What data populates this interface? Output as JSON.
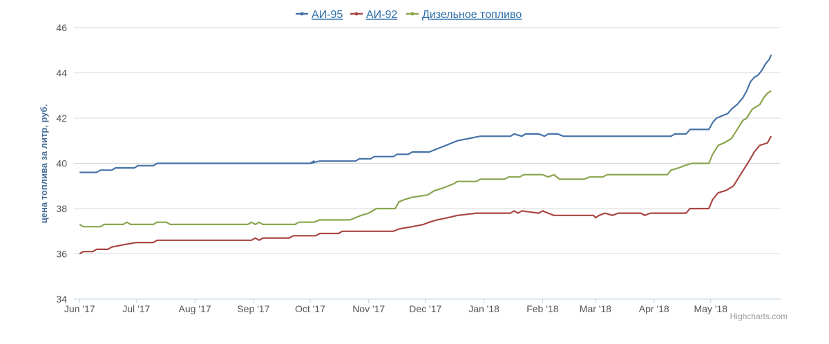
{
  "chart_data": {
    "type": "line",
    "ylabel": "цена топлива за литр, руб.",
    "ylim": [
      34,
      46
    ],
    "yticks": [
      34,
      36,
      38,
      40,
      42,
      44,
      46
    ],
    "xlim": [
      "2017-05-29",
      "2018-06-07"
    ],
    "xticks": [
      {
        "label": "Jun '17",
        "date": "2017-06-01"
      },
      {
        "label": "Jul '17",
        "date": "2017-07-01"
      },
      {
        "label": "Aug '17",
        "date": "2017-08-01"
      },
      {
        "label": "Sep '17",
        "date": "2017-09-01"
      },
      {
        "label": "Oct '17",
        "date": "2017-10-01"
      },
      {
        "label": "Nov '17",
        "date": "2017-11-01"
      },
      {
        "label": "Dec '17",
        "date": "2017-12-01"
      },
      {
        "label": "Jan '18",
        "date": "2018-01-01"
      },
      {
        "label": "Feb '18",
        "date": "2018-02-01"
      },
      {
        "label": "Mar '18",
        "date": "2018-03-01"
      },
      {
        "label": "Apr '18",
        "date": "2018-04-01"
      },
      {
        "label": "May '18",
        "date": "2018-05-01"
      }
    ],
    "grid": true,
    "legend": "top-center",
    "credit": "Highcharts.com",
    "series": [
      {
        "name": "АИ-95",
        "color": "#4572a7",
        "points": [
          [
            "2017-06-01",
            39.6
          ],
          [
            "2017-06-10",
            39.6
          ],
          [
            "2017-06-12",
            39.7
          ],
          [
            "2017-06-18",
            39.7
          ],
          [
            "2017-06-20",
            39.8
          ],
          [
            "2017-06-30",
            39.8
          ],
          [
            "2017-07-02",
            39.9
          ],
          [
            "2017-07-10",
            39.9
          ],
          [
            "2017-07-12",
            40.0
          ],
          [
            "2017-08-15",
            40.0
          ],
          [
            "2017-09-15",
            40.0
          ],
          [
            "2017-10-01",
            40.0
          ],
          [
            "2017-10-03",
            40.1
          ],
          [
            "2017-10-01",
            40.0
          ],
          [
            "2017-10-06",
            40.1
          ],
          [
            "2017-10-25",
            40.1
          ],
          [
            "2017-10-27",
            40.2
          ],
          [
            "2017-11-02",
            40.2
          ],
          [
            "2017-11-04",
            40.3
          ],
          [
            "2017-11-14",
            40.3
          ],
          [
            "2017-11-16",
            40.4
          ],
          [
            "2017-11-22",
            40.4
          ],
          [
            "2017-11-24",
            40.5
          ],
          [
            "2017-12-03",
            40.5
          ],
          [
            "2017-12-06",
            40.6
          ],
          [
            "2017-12-09",
            40.7
          ],
          [
            "2017-12-12",
            40.8
          ],
          [
            "2017-12-15",
            40.9
          ],
          [
            "2017-12-18",
            41.0
          ],
          [
            "2017-12-24",
            41.1
          ],
          [
            "2017-12-30",
            41.2
          ],
          [
            "2018-01-15",
            41.2
          ],
          [
            "2018-01-17",
            41.3
          ],
          [
            "2018-01-21",
            41.2
          ],
          [
            "2018-01-23",
            41.3
          ],
          [
            "2018-01-30",
            41.3
          ],
          [
            "2018-02-02",
            41.2
          ],
          [
            "2018-02-04",
            41.3
          ],
          [
            "2018-02-09",
            41.3
          ],
          [
            "2018-02-12",
            41.2
          ],
          [
            "2018-03-10",
            41.2
          ],
          [
            "2018-04-10",
            41.2
          ],
          [
            "2018-04-12",
            41.3
          ],
          [
            "2018-04-18",
            41.3
          ],
          [
            "2018-04-20",
            41.5
          ],
          [
            "2018-04-30",
            41.5
          ],
          [
            "2018-05-02",
            41.8
          ],
          [
            "2018-05-04",
            42.0
          ],
          [
            "2018-05-07",
            42.1
          ],
          [
            "2018-05-10",
            42.2
          ],
          [
            "2018-05-12",
            42.4
          ],
          [
            "2018-05-15",
            42.6
          ],
          [
            "2018-05-18",
            42.9
          ],
          [
            "2018-05-20",
            43.2
          ],
          [
            "2018-05-22",
            43.6
          ],
          [
            "2018-05-24",
            43.8
          ],
          [
            "2018-05-26",
            43.9
          ],
          [
            "2018-05-28",
            44.1
          ],
          [
            "2018-05-30",
            44.4
          ],
          [
            "2018-06-01",
            44.6
          ],
          [
            "2018-06-02",
            44.8
          ]
        ]
      },
      {
        "name": "АИ-92",
        "color": "#aa4643",
        "points": [
          [
            "2017-06-01",
            36.0
          ],
          [
            "2017-06-03",
            36.1
          ],
          [
            "2017-06-08",
            36.1
          ],
          [
            "2017-06-10",
            36.2
          ],
          [
            "2017-06-16",
            36.2
          ],
          [
            "2017-06-18",
            36.3
          ],
          [
            "2017-06-24",
            36.4
          ],
          [
            "2017-07-01",
            36.5
          ],
          [
            "2017-07-10",
            36.5
          ],
          [
            "2017-07-12",
            36.6
          ],
          [
            "2017-08-15",
            36.6
          ],
          [
            "2017-08-31",
            36.6
          ],
          [
            "2017-09-02",
            36.7
          ],
          [
            "2017-09-04",
            36.6
          ],
          [
            "2017-09-06",
            36.7
          ],
          [
            "2017-09-20",
            36.7
          ],
          [
            "2017-09-22",
            36.8
          ],
          [
            "2017-10-04",
            36.8
          ],
          [
            "2017-10-06",
            36.9
          ],
          [
            "2017-10-16",
            36.9
          ],
          [
            "2017-10-18",
            37.0
          ],
          [
            "2017-11-08",
            37.0
          ],
          [
            "2017-11-14",
            37.0
          ],
          [
            "2017-11-17",
            37.1
          ],
          [
            "2017-11-24",
            37.2
          ],
          [
            "2017-11-30",
            37.3
          ],
          [
            "2017-12-03",
            37.4
          ],
          [
            "2017-12-07",
            37.5
          ],
          [
            "2017-12-13",
            37.6
          ],
          [
            "2017-12-18",
            37.7
          ],
          [
            "2017-12-28",
            37.8
          ],
          [
            "2018-01-15",
            37.8
          ],
          [
            "2018-01-17",
            37.9
          ],
          [
            "2018-01-19",
            37.8
          ],
          [
            "2018-01-21",
            37.9
          ],
          [
            "2018-01-30",
            37.8
          ],
          [
            "2018-02-01",
            37.9
          ],
          [
            "2018-02-04",
            37.8
          ],
          [
            "2018-02-07",
            37.7
          ],
          [
            "2018-02-28",
            37.7
          ],
          [
            "2018-03-01",
            37.6
          ],
          [
            "2018-03-03",
            37.7
          ],
          [
            "2018-03-06",
            37.8
          ],
          [
            "2018-03-10",
            37.7
          ],
          [
            "2018-03-13",
            37.8
          ],
          [
            "2018-03-25",
            37.8
          ],
          [
            "2018-03-27",
            37.7
          ],
          [
            "2018-03-30",
            37.8
          ],
          [
            "2018-04-18",
            37.8
          ],
          [
            "2018-04-20",
            38.0
          ],
          [
            "2018-04-30",
            38.0
          ],
          [
            "2018-05-02",
            38.4
          ],
          [
            "2018-05-05",
            38.7
          ],
          [
            "2018-05-09",
            38.8
          ],
          [
            "2018-05-13",
            39.0
          ],
          [
            "2018-05-16",
            39.4
          ],
          [
            "2018-05-19",
            39.8
          ],
          [
            "2018-05-22",
            40.2
          ],
          [
            "2018-05-24",
            40.5
          ],
          [
            "2018-05-27",
            40.8
          ],
          [
            "2018-05-31",
            40.9
          ],
          [
            "2018-06-02",
            41.2
          ]
        ]
      },
      {
        "name": "Дизельное топливо",
        "color": "#89a54e",
        "points": [
          [
            "2017-06-01",
            37.3
          ],
          [
            "2017-06-03",
            37.2
          ],
          [
            "2017-06-12",
            37.2
          ],
          [
            "2017-06-14",
            37.3
          ],
          [
            "2017-06-24",
            37.3
          ],
          [
            "2017-06-26",
            37.4
          ],
          [
            "2017-06-28",
            37.3
          ],
          [
            "2017-07-10",
            37.3
          ],
          [
            "2017-07-12",
            37.4
          ],
          [
            "2017-07-17",
            37.4
          ],
          [
            "2017-07-19",
            37.3
          ],
          [
            "2017-08-29",
            37.3
          ],
          [
            "2017-08-31",
            37.4
          ],
          [
            "2017-09-02",
            37.3
          ],
          [
            "2017-09-04",
            37.4
          ],
          [
            "2017-09-06",
            37.3
          ],
          [
            "2017-09-23",
            37.3
          ],
          [
            "2017-09-25",
            37.4
          ],
          [
            "2017-10-03",
            37.4
          ],
          [
            "2017-10-06",
            37.5
          ],
          [
            "2017-10-22",
            37.5
          ],
          [
            "2017-10-25",
            37.6
          ],
          [
            "2017-10-28",
            37.7
          ],
          [
            "2017-11-01",
            37.8
          ],
          [
            "2017-11-03",
            37.9
          ],
          [
            "2017-11-05",
            38.0
          ],
          [
            "2017-11-15",
            38.0
          ],
          [
            "2017-11-17",
            38.3
          ],
          [
            "2017-11-20",
            38.4
          ],
          [
            "2017-11-24",
            38.5
          ],
          [
            "2017-12-02",
            38.6
          ],
          [
            "2017-12-06",
            38.8
          ],
          [
            "2017-12-10",
            38.9
          ],
          [
            "2017-12-16",
            39.1
          ],
          [
            "2017-12-18",
            39.2
          ],
          [
            "2017-12-28",
            39.2
          ],
          [
            "2017-12-30",
            39.3
          ],
          [
            "2018-01-12",
            39.3
          ],
          [
            "2018-01-14",
            39.4
          ],
          [
            "2018-01-20",
            39.4
          ],
          [
            "2018-01-22",
            39.5
          ],
          [
            "2018-02-01",
            39.5
          ],
          [
            "2018-02-04",
            39.4
          ],
          [
            "2018-02-07",
            39.5
          ],
          [
            "2018-02-10",
            39.3
          ],
          [
            "2018-02-23",
            39.3
          ],
          [
            "2018-02-26",
            39.4
          ],
          [
            "2018-03-05",
            39.4
          ],
          [
            "2018-03-07",
            39.5
          ],
          [
            "2018-04-08",
            39.5
          ],
          [
            "2018-04-10",
            39.7
          ],
          [
            "2018-04-14",
            39.8
          ],
          [
            "2018-04-17",
            39.9
          ],
          [
            "2018-04-21",
            40.0
          ],
          [
            "2018-04-30",
            40.0
          ],
          [
            "2018-05-02",
            40.4
          ],
          [
            "2018-05-05",
            40.8
          ],
          [
            "2018-05-08",
            40.9
          ],
          [
            "2018-05-12",
            41.1
          ],
          [
            "2018-05-15",
            41.5
          ],
          [
            "2018-05-18",
            41.9
          ],
          [
            "2018-05-20",
            42.0
          ],
          [
            "2018-05-23",
            42.4
          ],
          [
            "2018-05-27",
            42.6
          ],
          [
            "2018-05-29",
            42.9
          ],
          [
            "2018-05-31",
            43.1
          ],
          [
            "2018-06-02",
            43.2
          ]
        ]
      }
    ]
  }
}
